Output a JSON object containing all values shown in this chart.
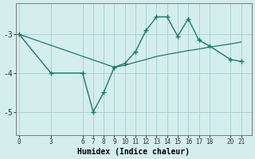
{
  "xlabel": "Humidex (Indice chaleur)",
  "bg_color": "#d4eeee",
  "line_color": "#1a7a6e",
  "grid_color": "#aad4d4",
  "line1_x": [
    0,
    3,
    6,
    7,
    8,
    9,
    10,
    11,
    12,
    13,
    14,
    15,
    16,
    17,
    18,
    20,
    21
  ],
  "line1_y": [
    -3.0,
    -4.0,
    -4.0,
    -5.0,
    -4.5,
    -3.85,
    -3.75,
    -3.45,
    -2.9,
    -2.55,
    -2.55,
    -3.05,
    -2.6,
    -3.15,
    -3.3,
    -3.65,
    -3.7
  ],
  "line2_x": [
    0,
    9,
    10,
    11,
    12,
    13,
    14,
    15,
    16,
    17,
    18,
    20,
    21
  ],
  "line2_y": [
    -3.0,
    -3.85,
    -3.8,
    -3.72,
    -3.65,
    -3.57,
    -3.52,
    -3.47,
    -3.42,
    -3.38,
    -3.33,
    -3.25,
    -3.2
  ],
  "xticks": [
    0,
    3,
    6,
    7,
    8,
    9,
    10,
    11,
    12,
    13,
    14,
    15,
    16,
    17,
    18,
    20,
    21
  ],
  "yticks": [
    -3,
    -4,
    -5
  ],
  "ylim": [
    -5.6,
    -2.2
  ],
  "xlim": [
    -0.3,
    22.0
  ]
}
